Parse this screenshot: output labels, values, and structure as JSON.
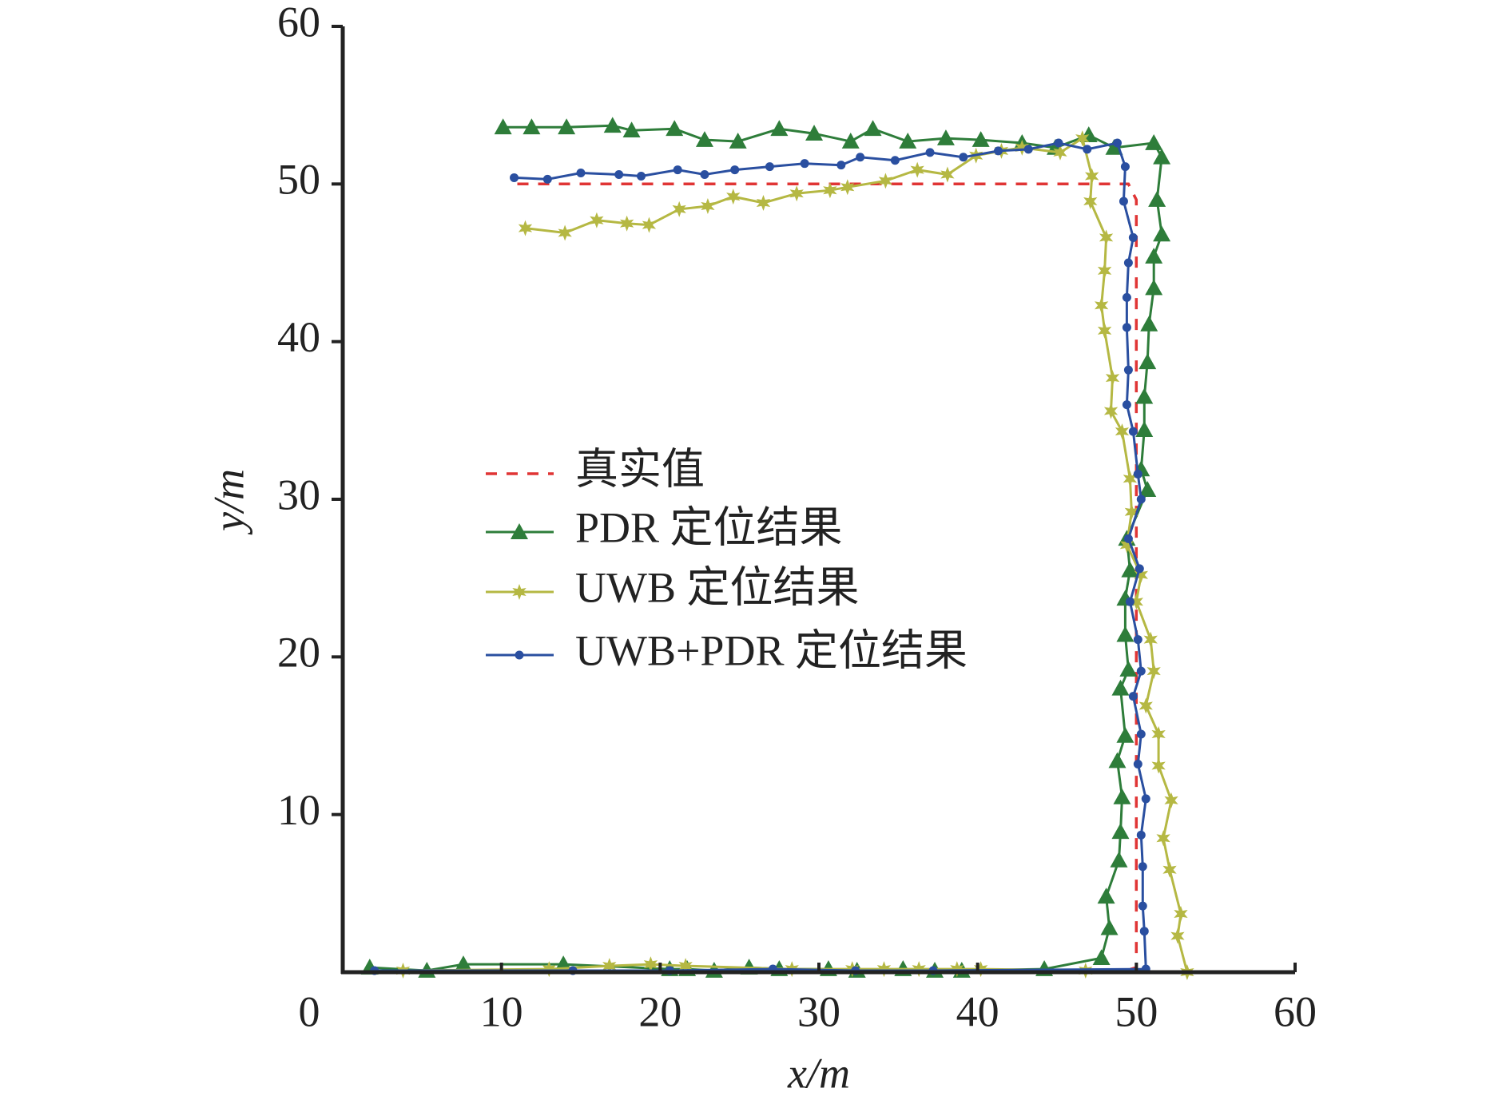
{
  "chart_data": {
    "type": "line",
    "x_label": "x/m",
    "y_label": "y/m",
    "xlim": [
      0,
      60
    ],
    "ylim": [
      0,
      60
    ],
    "xticks": [
      0,
      10,
      20,
      30,
      40,
      50,
      60
    ],
    "yticks": [
      10,
      20,
      30,
      40,
      50,
      60
    ],
    "legend": "center-left",
    "series": [
      {
        "name": "真实值",
        "color": "#e03535",
        "marker": "none",
        "dash": true,
        "x": [
          11,
          49.5,
          50,
          50,
          49
        ],
        "values": [
          50,
          50,
          49,
          0.3,
          0
        ]
      },
      {
        "name": "PDR 定位结果",
        "color": "#2e7d3a",
        "marker": "triangle",
        "dash": false,
        "x": [
          10.1,
          11.9,
          14.1,
          17.0,
          18.2,
          20.9,
          22.8,
          24.9,
          27.5,
          29.7,
          32.0,
          33.4,
          35.6,
          38.0,
          40.2,
          42.8,
          44.9,
          47.0,
          48.6,
          51.1,
          51.6,
          51.3,
          51.6,
          51.1,
          51.1,
          50.8,
          50.7,
          50.5,
          50.5,
          50.3,
          50.7,
          49.4,
          49.6,
          49.3,
          49.3,
          49.5,
          49.0,
          49.3,
          48.8,
          49.1,
          49.0,
          48.9,
          48.1,
          48.3,
          47.8,
          44.2,
          39.0,
          37.3,
          35.3,
          32.4,
          30.6,
          27.5,
          25.6,
          23.4,
          21.7,
          20.6,
          13.9,
          7.6,
          5.3,
          1.7
        ],
        "values": [
          53.6,
          53.6,
          53.6,
          53.7,
          53.4,
          53.5,
          52.8,
          52.7,
          53.5,
          53.2,
          52.7,
          53.5,
          52.7,
          52.9,
          52.8,
          52.6,
          52.3,
          53.1,
          52.3,
          52.6,
          51.7,
          49.0,
          46.8,
          45.4,
          43.4,
          41.1,
          38.7,
          36.5,
          34.4,
          31.9,
          30.6,
          27.5,
          25.5,
          23.7,
          21.4,
          19.2,
          18.0,
          15.0,
          13.4,
          11.1,
          8.9,
          7.1,
          4.8,
          2.8,
          0.9,
          0.2,
          0.1,
          0.1,
          0.2,
          0.1,
          0.2,
          0.2,
          0.3,
          0.1,
          0.2,
          0.2,
          0.5,
          0.5,
          0.1,
          0.3
        ]
      },
      {
        "name": "UWB 定位结果",
        "color": "#b5b843",
        "marker": "star",
        "dash": false,
        "x": [
          11.5,
          14.0,
          16.0,
          17.9,
          19.3,
          21.2,
          23.0,
          24.6,
          26.5,
          28.6,
          30.7,
          31.8,
          34.2,
          36.2,
          38.1,
          39.9,
          41.5,
          42.8,
          45.2,
          46.6,
          47.2,
          47.1,
          48.1,
          48.0,
          47.8,
          48.0,
          48.5,
          48.4,
          49.1,
          49.6,
          49.7,
          49.4,
          50.3,
          50.0,
          50.9,
          51.1,
          50.6,
          51.4,
          51.4,
          52.2,
          51.7,
          52.1,
          52.8,
          52.6,
          53.2,
          46.8,
          40.2,
          38.7,
          36.3,
          34.1,
          32.1,
          28.3,
          21.6,
          19.4,
          16.8,
          13.0,
          3.8
        ],
        "values": [
          47.2,
          46.9,
          47.7,
          47.5,
          47.4,
          48.4,
          48.6,
          49.2,
          48.8,
          49.4,
          49.6,
          49.8,
          50.2,
          50.9,
          50.6,
          51.8,
          52.1,
          52.3,
          52.0,
          52.9,
          50.5,
          48.9,
          46.6,
          44.5,
          42.3,
          40.7,
          37.7,
          35.6,
          34.3,
          31.3,
          29.2,
          27.1,
          25.2,
          23.5,
          21.1,
          19.1,
          16.9,
          15.1,
          13.1,
          10.9,
          8.5,
          6.5,
          3.7,
          2.3,
          0.0,
          0.1,
          0.2,
          0.2,
          0.2,
          0.2,
          0.2,
          0.2,
          0.4,
          0.5,
          0.4,
          0.2,
          0.1
        ]
      },
      {
        "name": "UWB+PDR 定位结果",
        "color": "#2a4fa0",
        "marker": "circle",
        "dash": false,
        "x": [
          10.8,
          12.9,
          15.0,
          17.4,
          18.8,
          21.1,
          22.8,
          24.7,
          26.9,
          29.1,
          31.4,
          32.6,
          34.8,
          37.0,
          39.1,
          41.3,
          43.2,
          45.1,
          46.9,
          48.8,
          49.3,
          49.2,
          49.8,
          49.5,
          49.4,
          49.4,
          49.5,
          49.4,
          49.8,
          50.1,
          50.3,
          49.5,
          50.2,
          49.6,
          50.1,
          50.3,
          49.8,
          50.3,
          50.1,
          50.6,
          50.3,
          50.4,
          50.4,
          50.5,
          50.6,
          37.2,
          32.3,
          27.1,
          20.6,
          14.5,
          2.0
        ],
        "values": [
          50.4,
          50.3,
          50.7,
          50.6,
          50.5,
          50.9,
          50.6,
          50.9,
          51.1,
          51.3,
          51.2,
          51.7,
          51.5,
          52.0,
          51.7,
          52.1,
          52.2,
          52.6,
          52.2,
          52.6,
          51.1,
          48.9,
          46.6,
          45.0,
          42.8,
          40.9,
          38.2,
          36.0,
          34.3,
          31.6,
          30.0,
          27.5,
          25.6,
          23.5,
          21.1,
          19.1,
          17.5,
          15.1,
          13.2,
          11.0,
          8.7,
          6.7,
          4.2,
          2.6,
          0.2,
          0.1,
          0.1,
          0.2,
          0.1,
          0.1,
          0.1
        ]
      }
    ]
  }
}
